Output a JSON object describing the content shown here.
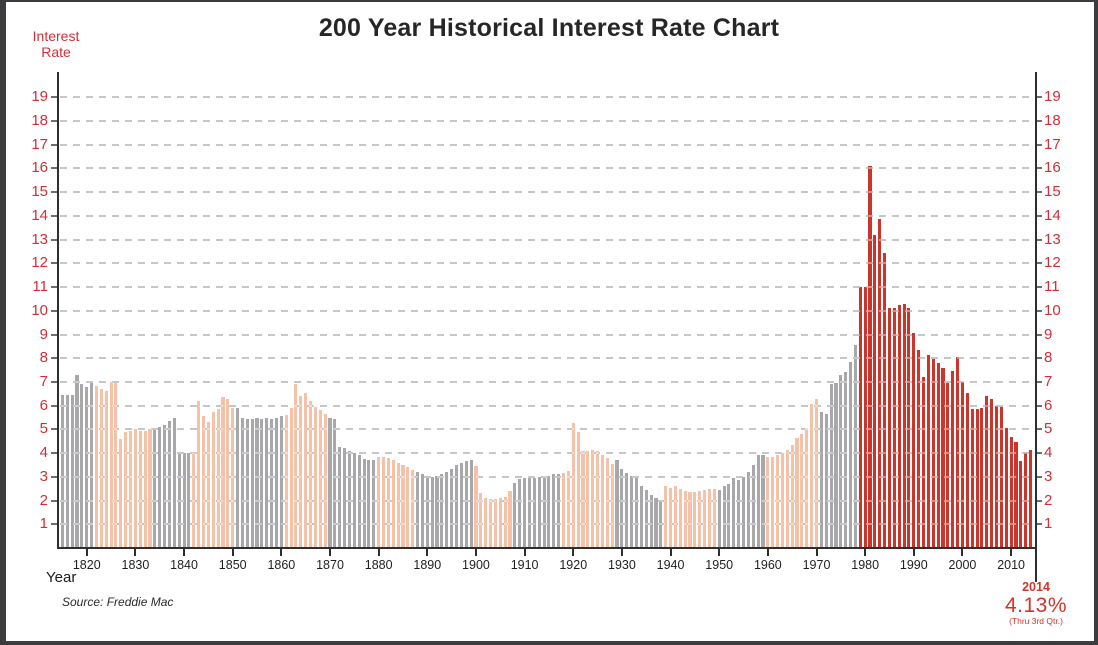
{
  "header": {
    "title": "200 Year Historical Interest Rate Chart"
  },
  "axes": {
    "y_label_line1": "Interest",
    "y_label_line2": "Rate",
    "x_label": "Year",
    "y_ticks": [
      1,
      2,
      3,
      4,
      5,
      6,
      7,
      8,
      9,
      10,
      11,
      12,
      13,
      14,
      15,
      16,
      17,
      18,
      19
    ],
    "x_ticks": [
      1820,
      1830,
      1840,
      1850,
      1860,
      1870,
      1880,
      1890,
      1900,
      1910,
      1920,
      1930,
      1940,
      1950,
      1960,
      1970,
      1980,
      1990,
      2000,
      2010
    ]
  },
  "source": {
    "text": "Source: Freddie Mac"
  },
  "annotation": {
    "year": "2014",
    "value": "4.13%",
    "note": "(Thru 3rd Qtr.)"
  },
  "colors": {
    "bar_gray": "#a8a8aa",
    "bar_salmon": "#f4c2a8",
    "bar_red": "#cb352b",
    "axis_label_red": "#d02f38",
    "gridline": "#a2a2a2",
    "axis_line": "#2e2e2e",
    "title_text": "#262626",
    "frame": "#3c3c3e"
  },
  "chart_data": {
    "type": "bar",
    "title": "200 Year Historical Interest Rate Chart",
    "xlabel": "Year",
    "ylabel": "Interest Rate",
    "x_start": 1815,
    "x_end": 2014,
    "ylim": [
      0,
      20
    ],
    "grid": "horizontal dashed lines at integers 1-19, labels on both sides in red",
    "legend": "none",
    "note": "bars colored in alternating historical-era blocks (gray / salmon), modern era in red",
    "eras": [
      {
        "start": 1815,
        "end": 1821,
        "color": "gray",
        "values": [
          6.45,
          6.45,
          6.45,
          7.3,
          6.9,
          6.8,
          7.0
        ]
      },
      {
        "start": 1822,
        "end": 1833,
        "color": "salmon",
        "values": [
          6.85,
          6.7,
          6.6,
          7.0,
          6.95,
          4.6,
          4.9,
          4.95,
          5.0,
          4.95,
          4.95,
          5.0
        ]
      },
      {
        "start": 1834,
        "end": 1841,
        "color": "gray",
        "values": [
          5.0,
          5.1,
          5.2,
          5.35,
          5.5,
          4.0,
          4.0,
          4.0
        ]
      },
      {
        "start": 1842,
        "end": 1850,
        "color": "salmon",
        "values": [
          4.0,
          6.2,
          5.55,
          5.3,
          5.75,
          5.85,
          6.35,
          6.3,
          5.9
        ]
      },
      {
        "start": 1851,
        "end": 1860,
        "color": "gray",
        "values": [
          5.9,
          5.5,
          5.45,
          5.45,
          5.5,
          5.45,
          5.5,
          5.45,
          5.5,
          5.55
        ]
      },
      {
        "start": 1861,
        "end": 1869,
        "color": "salmon",
        "values": [
          5.6,
          5.9,
          6.9,
          6.4,
          6.55,
          6.2,
          5.95,
          5.8,
          5.65
        ]
      },
      {
        "start": 1870,
        "end": 1879,
        "color": "gray",
        "values": [
          5.5,
          5.45,
          4.25,
          4.2,
          4.1,
          4.0,
          3.9,
          3.75,
          3.7,
          3.7
        ]
      },
      {
        "start": 1880,
        "end": 1887,
        "color": "salmon",
        "values": [
          3.85,
          3.85,
          3.8,
          3.7,
          3.6,
          3.5,
          3.4,
          3.3
        ]
      },
      {
        "start": 1888,
        "end": 1899,
        "color": "gray",
        "values": [
          3.2,
          3.1,
          3.0,
          3.0,
          3.05,
          3.1,
          3.2,
          3.35,
          3.5,
          3.6,
          3.65,
          3.7
        ]
      },
      {
        "start": 1900,
        "end": 1907,
        "color": "salmon",
        "values": [
          3.45,
          2.3,
          2.1,
          2.05,
          2.05,
          2.1,
          2.15,
          2.4
        ]
      },
      {
        "start": 1908,
        "end": 1917,
        "color": "gray",
        "values": [
          2.75,
          2.9,
          2.95,
          3.0,
          2.95,
          3.0,
          3.05,
          3.05,
          3.1,
          3.1
        ]
      },
      {
        "start": 1918,
        "end": 1928,
        "color": "salmon",
        "values": [
          3.15,
          3.25,
          5.25,
          4.9,
          4.1,
          4.1,
          4.15,
          4.1,
          3.9,
          3.8,
          3.55
        ]
      },
      {
        "start": 1929,
        "end": 1938,
        "color": "gray",
        "values": [
          3.7,
          3.35,
          3.15,
          3.05,
          2.95,
          2.6,
          2.45,
          2.25,
          2.1,
          1.95
        ]
      },
      {
        "start": 1939,
        "end": 1949,
        "color": "salmon",
        "values": [
          2.6,
          2.55,
          2.6,
          2.5,
          2.4,
          2.35,
          2.35,
          2.4,
          2.45,
          2.5,
          2.5
        ]
      },
      {
        "start": 1950,
        "end": 1959,
        "color": "gray",
        "values": [
          2.45,
          2.6,
          2.7,
          2.95,
          2.85,
          3.0,
          3.2,
          3.5,
          3.9,
          3.9
        ]
      },
      {
        "start": 1960,
        "end": 1970,
        "color": "salmon",
        "values": [
          3.85,
          3.85,
          3.9,
          4.0,
          4.15,
          4.35,
          4.65,
          4.8,
          5.05,
          6.05,
          6.3
        ]
      },
      {
        "start": 1971,
        "end": 1978,
        "color": "gray",
        "values": [
          5.75,
          5.65,
          6.9,
          6.95,
          7.3,
          7.4,
          7.85,
          8.55
        ]
      },
      {
        "start": 1979,
        "end": 2014,
        "color": "red",
        "values": [
          11.0,
          11.0,
          16.1,
          13.2,
          13.85,
          12.45,
          10.1,
          10.1,
          10.25,
          10.3,
          10.1,
          9.05,
          8.35,
          7.2,
          8.15,
          7.95,
          7.8,
          7.6,
          6.95,
          7.45,
          8.05,
          7.0,
          6.55,
          5.85,
          5.85,
          5.9,
          6.4,
          6.3,
          6.0,
          5.95,
          5.05,
          4.7,
          4.45,
          3.65,
          4.0,
          4.13
        ]
      }
    ]
  }
}
